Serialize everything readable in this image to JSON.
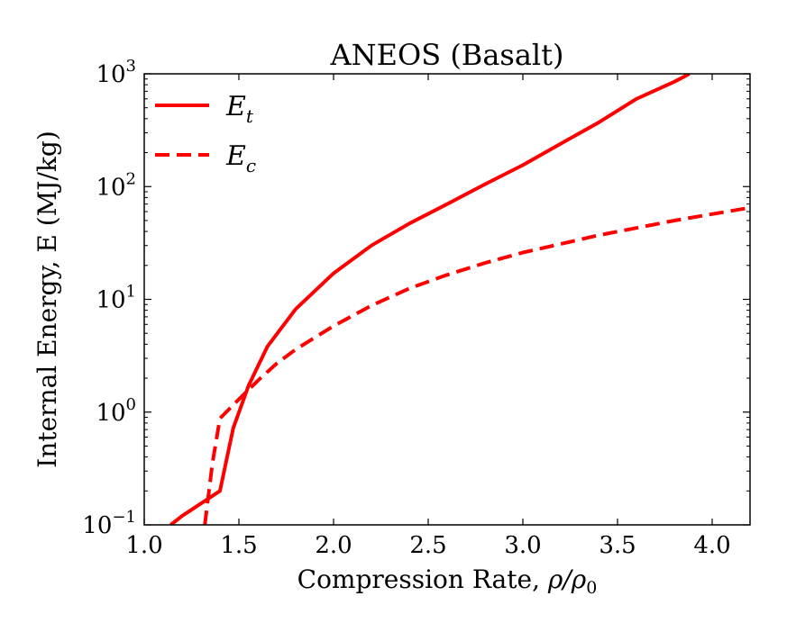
{
  "chart_data": {
    "type": "line",
    "title": "ANEOS (Basalt)",
    "xlabel": "Compression Rate, ",
    "xlabel_math": {
      "base": "ρ/ρ",
      "sub": "0"
    },
    "ylabel": "Internal Energy, E (MJ/kg)",
    "xlim": [
      1.0,
      4.2
    ],
    "ylim_log10": [
      -1,
      3
    ],
    "yscale": "log",
    "x_ticks": [
      1.0,
      1.5,
      2.0,
      2.5,
      3.0,
      3.5,
      4.0
    ],
    "x_tick_labels": [
      "1.0",
      "1.5",
      "2.0",
      "2.5",
      "3.0",
      "3.5",
      "4.0"
    ],
    "y_ticks": [
      {
        "value": 0.1,
        "base": "10",
        "exp": "−1"
      },
      {
        "value": 1,
        "base": "10",
        "exp": "0"
      },
      {
        "value": 10,
        "base": "10",
        "exp": "1"
      },
      {
        "value": 100,
        "base": "10",
        "exp": "2"
      },
      {
        "value": 1000,
        "base": "10",
        "exp": "3"
      }
    ],
    "legend_position": "top-left",
    "series": [
      {
        "name": "E",
        "sub": "t",
        "style": "solid",
        "color": "#ff0000",
        "x": [
          1.14,
          1.2,
          1.3,
          1.4,
          1.47,
          1.55,
          1.65,
          1.8,
          2.0,
          2.2,
          2.4,
          2.6,
          2.8,
          3.0,
          3.2,
          3.4,
          3.6,
          3.8,
          3.88
        ],
        "y": [
          0.1,
          0.12,
          0.155,
          0.2,
          0.72,
          1.7,
          3.8,
          8.2,
          17,
          30,
          47,
          70,
          105,
          155,
          240,
          370,
          600,
          850,
          1000
        ]
      },
      {
        "name": "E",
        "sub": "c",
        "style": "dashed",
        "color": "#ff0000",
        "x": [
          1.32,
          1.36,
          1.4,
          1.5,
          1.6,
          1.7,
          1.8,
          2.0,
          2.2,
          2.4,
          2.6,
          2.8,
          3.0,
          3.2,
          3.4,
          3.6,
          3.8,
          4.0,
          4.2
        ],
        "y": [
          0.1,
          0.35,
          0.88,
          1.3,
          1.9,
          2.7,
          3.6,
          5.8,
          8.8,
          12.5,
          16.5,
          21,
          26,
          31,
          37,
          43,
          50,
          57,
          65
        ]
      }
    ]
  }
}
